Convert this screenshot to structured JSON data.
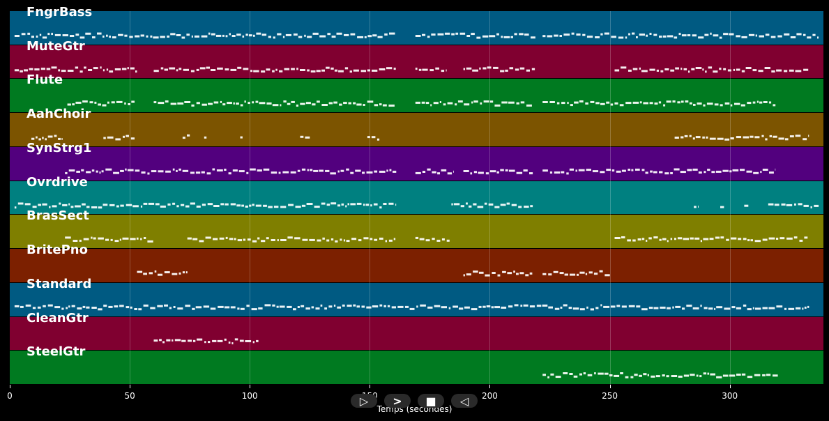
{
  "chart_data": {
    "type": "piano-roll",
    "title": "",
    "xlabel": "Temps (secondes)",
    "ylabel": "",
    "xlim": [
      0,
      339
    ],
    "x_ticks": [
      0,
      50,
      100,
      150,
      200,
      250,
      300
    ],
    "grid": true,
    "tracks": [
      {
        "name": "FngrBass",
        "color": "#005a82",
        "segments": [
          [
            2,
            161
          ],
          [
            169,
            219
          ],
          [
            222,
            337
          ]
        ]
      },
      {
        "name": "MuteGtr",
        "color": "#800030",
        "segments": [
          [
            2,
            53
          ],
          [
            60,
            161
          ],
          [
            169,
            182
          ],
          [
            189,
            219
          ],
          [
            252,
            333
          ]
        ]
      },
      {
        "name": "Flute",
        "color": "#007a20",
        "segments": [
          [
            24,
            52
          ],
          [
            60,
            161
          ],
          [
            169,
            218
          ],
          [
            222,
            319
          ]
        ]
      },
      {
        "name": "AahChoir",
        "color": "#7c5400",
        "segments": [
          [
            9,
            22
          ],
          [
            39,
            52
          ],
          [
            72,
            75
          ],
          [
            81,
            82
          ],
          [
            96,
            97
          ],
          [
            121,
            125
          ],
          [
            149,
            154
          ],
          [
            277,
            333
          ]
        ]
      },
      {
        "name": "SynStrg1",
        "color": "#52007e",
        "segments": [
          [
            23,
            161
          ],
          [
            169,
            185
          ],
          [
            189,
            218
          ],
          [
            222,
            319
          ]
        ]
      },
      {
        "name": "Ovrdrive",
        "color": "#008080",
        "segments": [
          [
            2,
            161
          ],
          [
            184,
            218
          ],
          [
            285,
            287
          ],
          [
            296,
            298
          ],
          [
            306,
            308
          ],
          [
            316,
            337
          ]
        ]
      },
      {
        "name": "BrasSect",
        "color": "#7f7f00",
        "segments": [
          [
            23,
            60
          ],
          [
            74,
            161
          ],
          [
            169,
            184
          ],
          [
            252,
            333
          ]
        ]
      },
      {
        "name": "BritePno",
        "color": "#7c2000",
        "segments": [
          [
            53,
            74
          ],
          [
            189,
            218
          ],
          [
            222,
            250
          ]
        ]
      },
      {
        "name": "Standard",
        "color": "#005a82",
        "segments": [
          [
            2,
            333
          ]
        ]
      },
      {
        "name": "CleanGtr",
        "color": "#800030",
        "segments": [
          [
            60,
            104
          ]
        ]
      },
      {
        "name": "SteelGtr",
        "color": "#007a20",
        "segments": [
          [
            222,
            320
          ]
        ]
      }
    ]
  },
  "controls": {
    "play_label": "▷",
    "forward_label": ">",
    "stop_label": "■",
    "back_label": "◁"
  }
}
